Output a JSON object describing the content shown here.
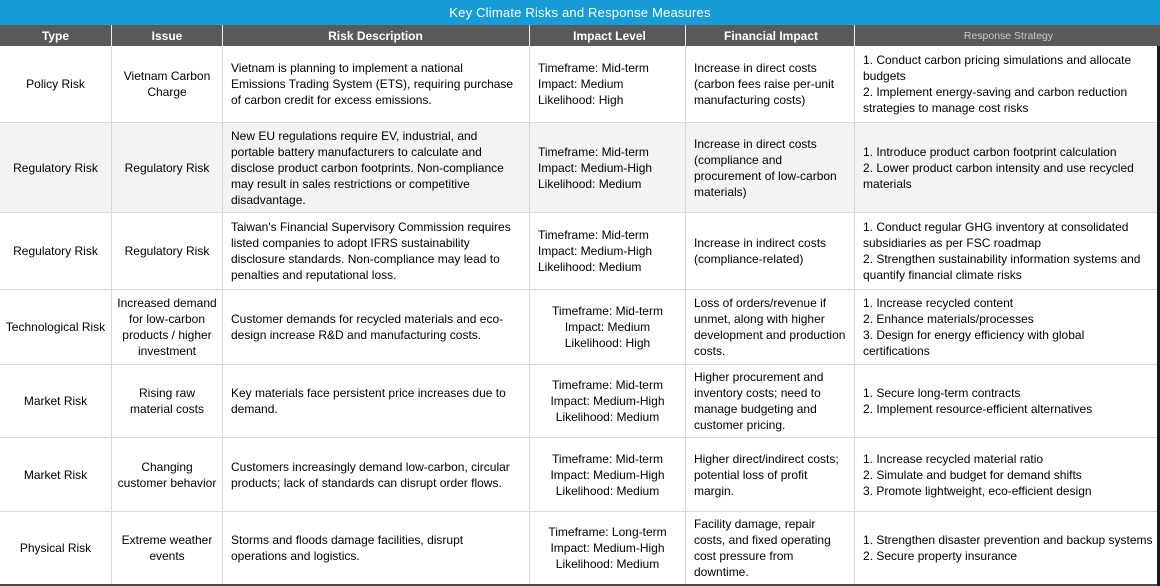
{
  "title": "Key Climate Risks and Response Measures",
  "colors": {
    "title_bar": "#189CD8",
    "header_bg": "#595959",
    "header_text": "#ffffff",
    "response_header_text": "#c9c9c9",
    "shaded_row_bg": "#f3f3f3",
    "grid_line": "#d9d9d9"
  },
  "columns": [
    {
      "label": "Type"
    },
    {
      "label": "Issue"
    },
    {
      "label": "Risk Description"
    },
    {
      "label": "Impact Level"
    },
    {
      "label": "Financial Impact"
    },
    {
      "label": "Response Strategy"
    }
  ],
  "rows": [
    {
      "type": "Policy Risk",
      "issue": "Vietnam Carbon Charge",
      "description": "Vietnam is planning to implement a national Emissions Trading System (ETS), requiring purchase of carbon credit for excess emissions.",
      "impact": [
        "Timeframe: Mid-term",
        "Impact: Medium",
        "Likelihood: High"
      ],
      "impact_align": "left",
      "financial": "Increase in direct costs (carbon fees raise per-unit manufacturing costs)",
      "response": [
        "1. Conduct carbon pricing simulations and allocate budgets",
        "2. Implement energy-saving and carbon reduction strategies to manage cost risks"
      ]
    },
    {
      "type": "Regulatory Risk",
      "issue": "Regulatory Risk",
      "description": "New EU regulations require EV, industrial, and portable battery manufacturers to calculate and disclose product carbon footprints. Non-compliance may result in sales restrictions or competitive disadvantage.",
      "impact": [
        "Timeframe: Mid-term",
        "Impact: Medium-High",
        "Likelihood: Medium"
      ],
      "impact_align": "left",
      "financial": "Increase in direct costs (compliance and procurement of low-carbon materials)",
      "response": [
        "1. Introduce product carbon footprint calculation",
        "2. Lower product carbon intensity and use recycled materials"
      ]
    },
    {
      "type": "Regulatory Risk",
      "issue": "Regulatory Risk",
      "description": "Taiwan's Financial Supervisory Commission requires listed companies to adopt IFRS sustainability disclosure standards. Non-compliance may lead to penalties and reputational loss.",
      "impact": [
        "Timeframe: Mid-term",
        "Impact: Medium-High",
        "Likelihood: Medium"
      ],
      "impact_align": "left",
      "financial": "Increase in indirect costs (compliance-related)",
      "response": [
        "1. Conduct regular GHG inventory at consolidated subsidiaries as per FSC roadmap",
        "2. Strengthen sustainability information systems and quantify financial climate risks"
      ]
    },
    {
      "type": "Technological Risk",
      "issue": "Increased demand for low-carbon products / higher investment",
      "description": "Customer demands for recycled materials and eco-design increase R&D and manufacturing costs.",
      "impact": [
        "Timeframe: Mid-term",
        "Impact: Medium",
        "Likelihood: High"
      ],
      "impact_align": "center",
      "financial": "Loss of orders/revenue if unmet, along with higher development and production costs.",
      "response": [
        "1. Increase recycled content",
        "2. Enhance materials/processes",
        "3. Design for energy efficiency with global certifications"
      ]
    },
    {
      "type": "Market Risk",
      "issue": "Rising raw material costs",
      "description": "Key materials face persistent price increases due to demand.",
      "impact": [
        "Timeframe: Mid-term",
        "Impact: Medium-High",
        "Likelihood: Medium"
      ],
      "impact_align": "center",
      "financial": "Higher procurement and inventory costs; need to manage budgeting and customer pricing.",
      "response": [
        "1. Secure long-term contracts",
        "2. Implement resource-efficient alternatives"
      ]
    },
    {
      "type": "Market Risk",
      "issue": "Changing customer behavior",
      "description": "Customers increasingly demand low-carbon, circular products; lack of standards can disrupt order flows.",
      "impact": [
        "Timeframe: Mid-term",
        "Impact: Medium-High",
        "Likelihood: Medium"
      ],
      "impact_align": "center",
      "financial": "Higher direct/indirect costs; potential loss of profit margin.",
      "response": [
        "1. Increase recycled material ratio",
        "2. Simulate and budget for demand shifts",
        "3. Promote lightweight, eco-efficient design"
      ]
    },
    {
      "type": "Physical Risk",
      "issue": "Extreme weather events",
      "description": "Storms and floods damage facilities, disrupt operations and logistics.",
      "impact": [
        "Timeframe: Long-term",
        "Impact: Medium-High",
        "Likelihood: Medium"
      ],
      "impact_align": "center",
      "financial": "Facility damage, repair costs, and fixed operating cost pressure from downtime.",
      "response": [
        "1. Strengthen disaster prevention and backup systems",
        "2. Secure property insurance"
      ]
    }
  ]
}
